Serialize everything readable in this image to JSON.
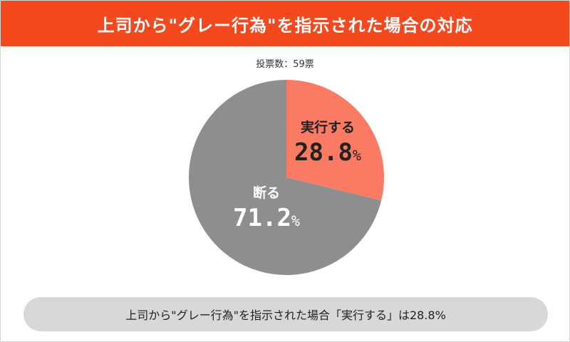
{
  "header": {
    "title": "上司から\"グレー行為\"を指示された場合の対応"
  },
  "votes_label": "投票数：59票",
  "footer": {
    "caption": "上司から\"グレー行為\"を指示された場合「実行する」は28.8%"
  },
  "colors": {
    "header_bg": "#f4481f",
    "slice_execute": "#fa7a63",
    "slice_refuse": "#8e8e8e",
    "caption_bg": "#d8d8d8"
  },
  "chart_data": {
    "type": "pie",
    "categories": [
      "実行する",
      "断る"
    ],
    "values": [
      28.8,
      71.2
    ],
    "unit": "%",
    "total_votes": 59,
    "start_angle": "12 o'clock, clockwise"
  }
}
